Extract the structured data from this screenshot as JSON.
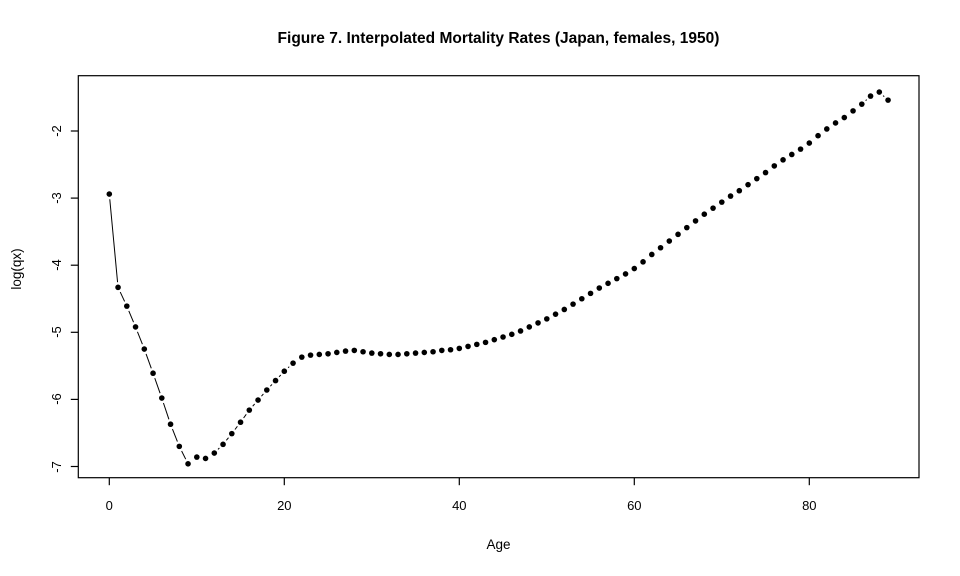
{
  "title": "Figure 7. Interpolated Mortality Rates (Japan, females, 1950)",
  "chart_data": {
    "type": "scatter",
    "plot_style": "points with gapped connecting line (R type='b', pch=20)",
    "title": "Figure 7. Interpolated Mortality Rates (Japan, females, 1950)",
    "xlabel": "Age",
    "ylabel": "log(qx)",
    "x_ticks": [
      0,
      20,
      40,
      60,
      80
    ],
    "y_ticks": [
      -2,
      -3,
      -4,
      -5,
      -6,
      -7
    ],
    "xlim": [
      -3.5,
      92.5
    ],
    "ylim": [
      -7.17,
      -1.18
    ],
    "grid": false,
    "legend": "none",
    "point_color": "#000000",
    "line_color": "#000000",
    "background_color": "#ffffff",
    "series": [
      {
        "name": "log mortality rate",
        "x": [
          0,
          1,
          2,
          3,
          4,
          5,
          6,
          7,
          8,
          9,
          10,
          11,
          12,
          13,
          14,
          15,
          16,
          17,
          18,
          19,
          20,
          21,
          22,
          23,
          24,
          25,
          26,
          27,
          28,
          29,
          30,
          31,
          32,
          33,
          34,
          35,
          36,
          37,
          38,
          39,
          40,
          41,
          42,
          43,
          44,
          45,
          46,
          47,
          48,
          49,
          50,
          51,
          52,
          53,
          54,
          55,
          56,
          57,
          58,
          59,
          60,
          61,
          62,
          63,
          64,
          65,
          66,
          67,
          68,
          69,
          70,
          71,
          72,
          73,
          74,
          75,
          76,
          77,
          78,
          79,
          80,
          81,
          82,
          83,
          84,
          85,
          86,
          87,
          88,
          89
        ],
        "y": [
          -2.94,
          -4.33,
          -4.61,
          -4.92,
          -5.25,
          -5.61,
          -5.98,
          -6.37,
          -6.7,
          -6.96,
          -6.86,
          -6.88,
          -6.8,
          -6.67,
          -6.51,
          -6.34,
          -6.16,
          -6.01,
          -5.86,
          -5.72,
          -5.58,
          -5.46,
          -5.37,
          -5.34,
          -5.33,
          -5.32,
          -5.3,
          -5.28,
          -5.27,
          -5.29,
          -5.31,
          -5.32,
          -5.33,
          -5.33,
          -5.32,
          -5.31,
          -5.3,
          -5.29,
          -5.27,
          -5.26,
          -5.24,
          -5.21,
          -5.18,
          -5.15,
          -5.11,
          -5.07,
          -5.03,
          -4.98,
          -4.92,
          -4.86,
          -4.8,
          -4.73,
          -4.66,
          -4.58,
          -4.5,
          -4.42,
          -4.34,
          -4.27,
          -4.2,
          -4.13,
          -4.05,
          -3.95,
          -3.84,
          -3.74,
          -3.64,
          -3.54,
          -3.44,
          -3.34,
          -3.24,
          -3.15,
          -3.06,
          -2.97,
          -2.89,
          -2.8,
          -2.71,
          -2.62,
          -2.52,
          -2.43,
          -2.35,
          -2.27,
          -2.18,
          -2.07,
          -1.97,
          -1.88,
          -1.8,
          -1.7,
          -1.6,
          -1.48,
          -1.42,
          -1.54
        ]
      }
    ]
  }
}
